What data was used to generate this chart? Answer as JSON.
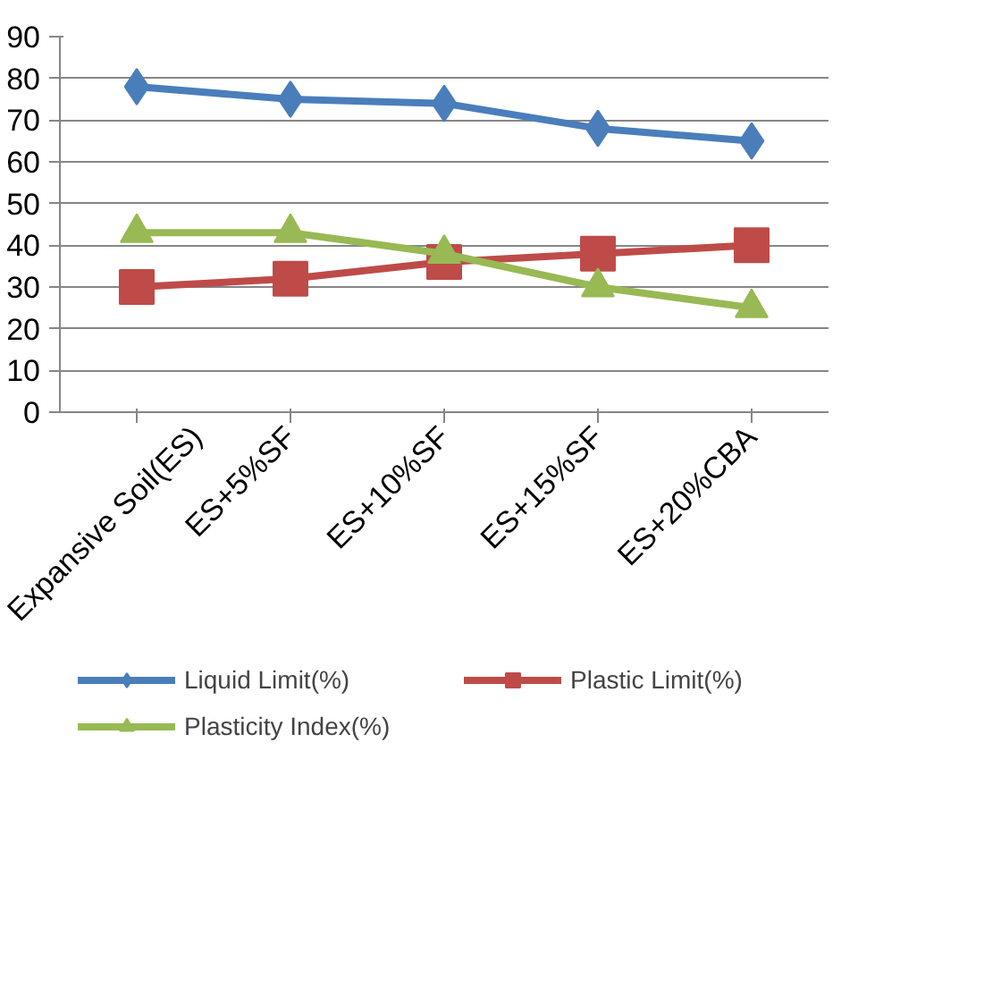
{
  "chart_data": {
    "type": "line",
    "categories": [
      "Expansive Soil(ES)",
      "ES+5%SF",
      "ES+10%SF",
      "ES+15%SF",
      "ES+20%CBA"
    ],
    "series": [
      {
        "name": "Liquid Limit(%)",
        "color": "#4a7ebb",
        "marker": "diamond",
        "values": [
          78,
          75,
          74,
          68,
          65
        ]
      },
      {
        "name": "Plastic Limit(%)",
        "color": "#be4b48",
        "marker": "square",
        "values": [
          30,
          32,
          36,
          38,
          40
        ]
      },
      {
        "name": "Plasticity Index(%)",
        "color": "#98b954",
        "marker": "triangle",
        "values": [
          43,
          43,
          38,
          30,
          25
        ]
      }
    ],
    "ylim": [
      0,
      90
    ],
    "yticks": [
      0,
      10,
      20,
      30,
      40,
      50,
      60,
      70,
      80,
      90
    ],
    "grid": "y",
    "legend": "bottom",
    "line_style": "solid"
  }
}
